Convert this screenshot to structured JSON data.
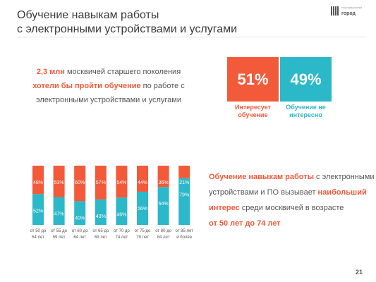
{
  "title": {
    "line1": "Обучение навыкам работы",
    "line2": "с электронными устройствами и услугами"
  },
  "logo": {
    "small_text": "информационный",
    "word": "город"
  },
  "intro": {
    "line1_highlight": "2,3  млн",
    "line1_text": " москвичей старшего  поколения",
    "line2_highlight": "хотели бы пройти обучение",
    "line2_text": " по работе с",
    "line3": "электронными устройствами и услугами"
  },
  "summary": {
    "interested_value": "51%",
    "interested_label_1": "Интересует",
    "interested_label_2": "обучение",
    "not_interested_value": "49%",
    "not_interested_label_1": "Обучение не",
    "not_interested_label_2": "интересно"
  },
  "colors": {
    "interested": "#f25a3a",
    "not_interested": "#2bb8c8"
  },
  "chart_data": {
    "type": "bar",
    "stacked": true,
    "percent": true,
    "categories": [
      [
        "от 50 до",
        "54 лет"
      ],
      [
        "от 55 до",
        "59 лет"
      ],
      [
        "от 60 до",
        "64 лет"
      ],
      [
        "от 65 до",
        "69 лет"
      ],
      [
        "от 70 до",
        "74 лет"
      ],
      [
        "от 75 до",
        "79 лет"
      ],
      [
        "от 80 до",
        "84 лет"
      ],
      [
        "от 85 лет",
        "и более"
      ]
    ],
    "series": [
      {
        "key": "not_interested",
        "values": [
          52,
          47,
          40,
          43,
          46,
          56,
          64,
          79
        ],
        "labels": [
          "52%",
          "47%",
          "40%",
          "43%",
          "46%",
          "56%",
          "64%",
          "79%"
        ]
      },
      {
        "key": "interested",
        "values": [
          48,
          53,
          60,
          57,
          54,
          44,
          36,
          21
        ],
        "labels": [
          "48%",
          "53%",
          "60%",
          "57%",
          "54%",
          "44%",
          "36%",
          "21%"
        ]
      }
    ],
    "ylim": [
      0,
      100
    ]
  },
  "conclusion": {
    "p1_highlight": "Обучение навыкам работы",
    "p1_text": " с электронными",
    "p2_text": "устройствами и ПО вызывает ",
    "p2_highlight": "наибольший",
    "p3_highlight": "интерес",
    "p3_text": " среди москвичей в возрасте",
    "p4_highlight": "от 50 лет до 74 лет"
  },
  "page_number": "21"
}
